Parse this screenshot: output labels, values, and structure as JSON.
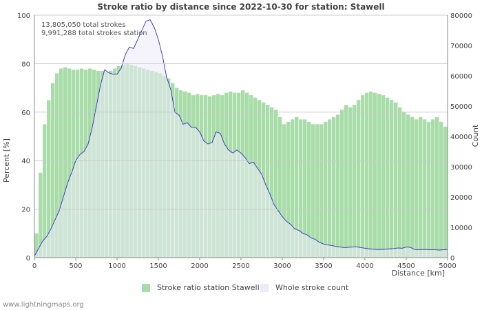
{
  "chart_data": {
    "type": "area",
    "title": "Stroke ratio by distance since 2022-10-30 for station: Stawell",
    "xlabel": "Distance   [km]",
    "ylabel_left": "Percent   [%]",
    "ylabel_right": "Count",
    "xlim": [
      0,
      5000
    ],
    "ylim_left": [
      0,
      100
    ],
    "ylim_right": [
      0,
      80000
    ],
    "x_ticks": [
      "0",
      "500",
      "1000",
      "1500",
      "2000",
      "2500",
      "3000",
      "3500",
      "4000",
      "4500",
      "5000"
    ],
    "y_left_ticks": [
      "0",
      "20",
      "40",
      "60",
      "80",
      "100"
    ],
    "y_right_ticks": [
      "0",
      "10000",
      "20000",
      "30000",
      "40000",
      "50000",
      "60000",
      "70000",
      "80000"
    ],
    "annotations": [
      "13,805,050 total strokes",
      "9,991,288 total strokes station"
    ],
    "series": [
      {
        "name": "Stroke ratio station Stawell",
        "axis": "left",
        "x": [
          0,
          50,
          100,
          150,
          200,
          250,
          300,
          350,
          400,
          450,
          500,
          550,
          600,
          650,
          700,
          750,
          800,
          850,
          900,
          950,
          1000,
          1050,
          1100,
          1150,
          1200,
          1250,
          1300,
          1350,
          1400,
          1450,
          1500,
          1550,
          1600,
          1650,
          1700,
          1750,
          1800,
          1850,
          1900,
          1950,
          2000,
          2050,
          2100,
          2150,
          2200,
          2250,
          2300,
          2350,
          2400,
          2450,
          2500,
          2550,
          2600,
          2650,
          2700,
          2750,
          2800,
          2850,
          2900,
          2950,
          3000,
          3050,
          3100,
          3150,
          3200,
          3250,
          3300,
          3350,
          3400,
          3450,
          3500,
          3550,
          3600,
          3650,
          3700,
          3750,
          3800,
          3850,
          3900,
          3950,
          4000,
          4050,
          4100,
          4150,
          4200,
          4250,
          4300,
          4350,
          4400,
          4450,
          4500,
          4550,
          4600,
          4650,
          4700,
          4750,
          4800,
          4850,
          4900,
          4950,
          5000
        ],
        "values": [
          10,
          35,
          55,
          65,
          72,
          76,
          78,
          78.5,
          78,
          77.5,
          77.5,
          78,
          77.5,
          78,
          77.5,
          77,
          77,
          76.5,
          77,
          78,
          79,
          79.5,
          80,
          79.5,
          79,
          78.5,
          78,
          77.5,
          77,
          76.5,
          76,
          75,
          74,
          72,
          70,
          69,
          68.5,
          68,
          67,
          67.5,
          67,
          67,
          66.5,
          67,
          67.5,
          67,
          68,
          68.5,
          68,
          68,
          69,
          68,
          67,
          66,
          65,
          64,
          63,
          62,
          61,
          58,
          55,
          56,
          57,
          58,
          57,
          57,
          56,
          55,
          55,
          55,
          56,
          57,
          58,
          59,
          61,
          63,
          62,
          63,
          65,
          67,
          68,
          68.5,
          68,
          67.5,
          67,
          66,
          65,
          64,
          62,
          60,
          59,
          58,
          57,
          58,
          57,
          56,
          57,
          58,
          56,
          54,
          53
        ]
      },
      {
        "name": "Whole stroke count",
        "axis": "right",
        "x": [
          0,
          50,
          100,
          150,
          200,
          250,
          300,
          350,
          400,
          450,
          500,
          550,
          600,
          650,
          700,
          750,
          800,
          850,
          900,
          950,
          1000,
          1050,
          1100,
          1150,
          1200,
          1250,
          1300,
          1350,
          1400,
          1450,
          1500,
          1550,
          1600,
          1650,
          1700,
          1750,
          1800,
          1850,
          1900,
          1950,
          2000,
          2050,
          2100,
          2150,
          2200,
          2250,
          2300,
          2350,
          2400,
          2450,
          2500,
          2550,
          2600,
          2650,
          2700,
          2750,
          2800,
          2850,
          2900,
          2950,
          3000,
          3050,
          3100,
          3150,
          3200,
          3250,
          3300,
          3350,
          3400,
          3450,
          3500,
          3550,
          3600,
          3650,
          3700,
          3750,
          3800,
          3850,
          3900,
          3950,
          4000,
          4050,
          4100,
          4150,
          4200,
          4250,
          4300,
          4350,
          4400,
          4450,
          4500,
          4550,
          4600,
          4650,
          4700,
          4750,
          4800,
          4850,
          4900,
          4950,
          5000
        ],
        "values": [
          500,
          3000,
          5500,
          7000,
          9500,
          12500,
          15500,
          20000,
          24500,
          28000,
          32000,
          34000,
          35000,
          37500,
          43000,
          50000,
          57000,
          62000,
          61000,
          60500,
          60500,
          62500,
          67000,
          69500,
          69000,
          72000,
          75000,
          78000,
          78500,
          76000,
          72000,
          66500,
          59500,
          55500,
          48000,
          47000,
          44000,
          44500,
          43000,
          43000,
          41500,
          38500,
          37500,
          38000,
          41500,
          41000,
          37500,
          35500,
          34500,
          35500,
          34500,
          33000,
          31000,
          31500,
          29500,
          27500,
          24000,
          21000,
          17500,
          15500,
          13500,
          12000,
          11000,
          9500,
          9000,
          8000,
          7500,
          6500,
          6000,
          5000,
          4500,
          4200,
          4000,
          3700,
          3500,
          3300,
          3400,
          3500,
          3600,
          3300,
          3100,
          2900,
          2800,
          2700,
          2700,
          2800,
          2900,
          3000,
          3200,
          3100,
          3500,
          3400,
          2700,
          2600,
          2700,
          2700,
          2600,
          2600,
          2500,
          2600,
          2700
        ]
      }
    ],
    "colors": {
      "ratio_fill": "#a8dca8",
      "count_fill": "#ecebfa",
      "count_line": "#3030c0",
      "grid": "#cccccc"
    }
  },
  "legend": {
    "ratio_label": "Stroke ratio station Stawell",
    "count_label": "Whole stroke count"
  },
  "footer": "www.lightningmaps.org"
}
